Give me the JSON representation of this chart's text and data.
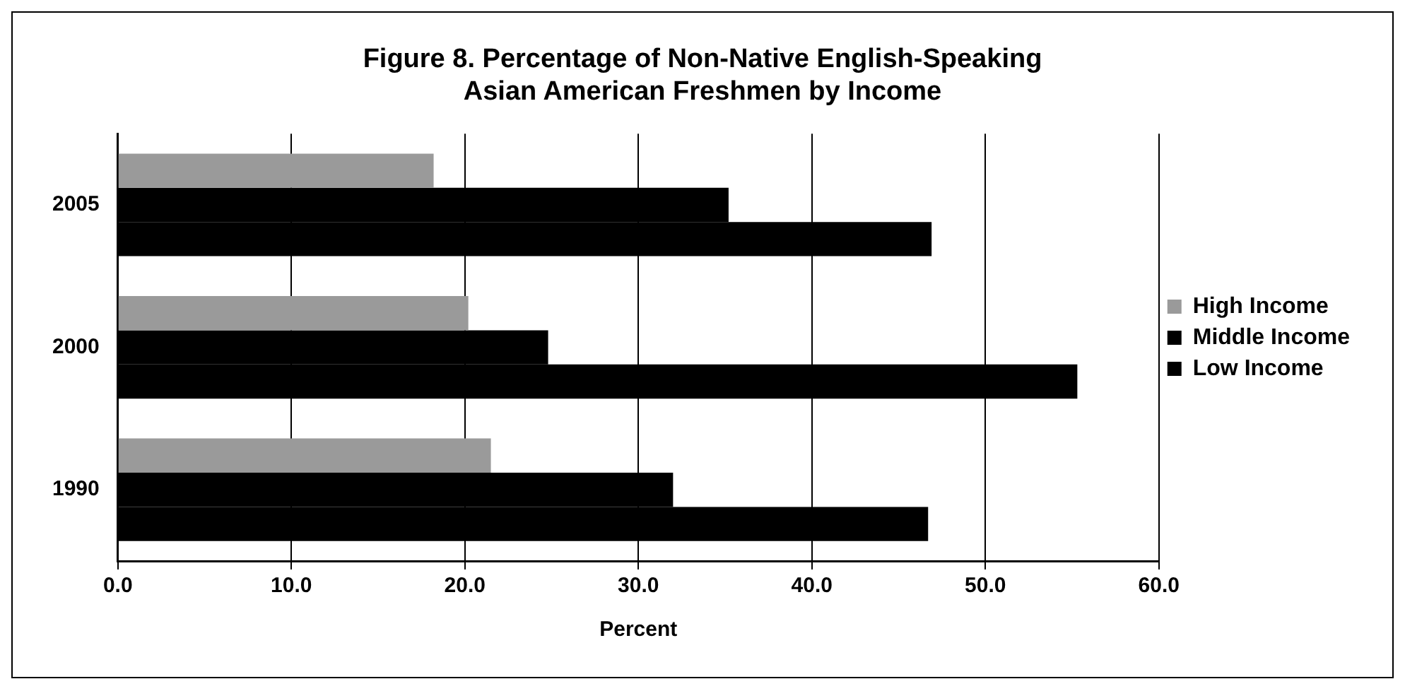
{
  "chart_data": {
    "type": "bar",
    "orientation": "horizontal",
    "title": "Figure 8. Percentage of Non-Native English-Speaking\nAsian American Freshmen by Income",
    "xlabel": "Percent",
    "categories": [
      "2005",
      "2000",
      "1990"
    ],
    "series": [
      {
        "name": "High Income",
        "color": "#9a9a9a",
        "values": [
          18.2,
          20.2,
          21.5
        ]
      },
      {
        "name": "Middle Income",
        "color": "#000000",
        "values": [
          35.2,
          24.8,
          32.0
        ]
      },
      {
        "name": "Low Income",
        "color": "#000000",
        "values": [
          46.9,
          55.3,
          46.7
        ]
      }
    ],
    "xlim": [
      0,
      60
    ],
    "xticks": [
      {
        "value": 0,
        "label": "0.0"
      },
      {
        "value": 10,
        "label": "10.0"
      },
      {
        "value": 20,
        "label": "20.0"
      },
      {
        "value": 30,
        "label": "30.0"
      },
      {
        "value": 40,
        "label": "40.0"
      },
      {
        "value": 50,
        "label": "50.0"
      },
      {
        "value": 60,
        "label": "60.0"
      }
    ],
    "grid": "x",
    "legend": "right"
  }
}
